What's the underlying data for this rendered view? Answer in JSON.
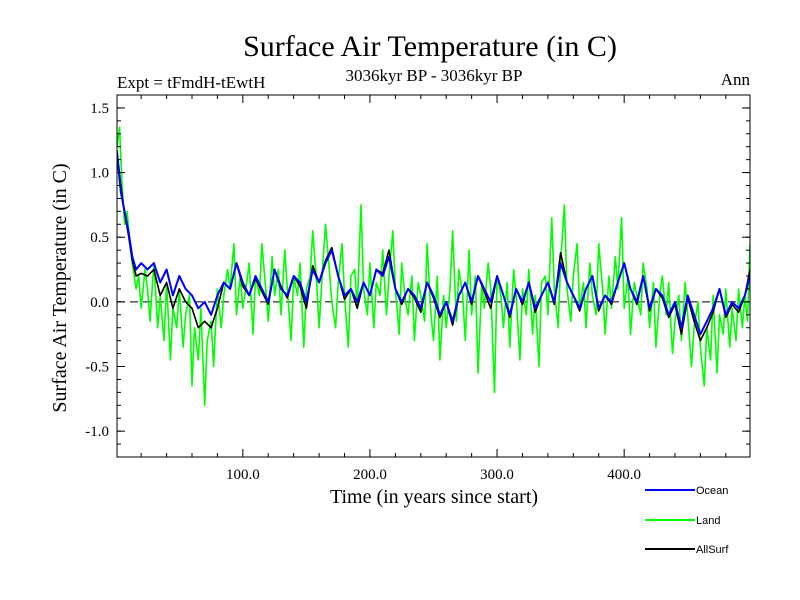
{
  "chart_data": {
    "type": "line",
    "title": "Surface Air Temperature (in C)",
    "subtitle_left": "Expt = tFmdH-tEwtH",
    "subtitle_center": "3036kyr BP - 3036kyr BP",
    "subtitle_right": "Ann",
    "xlabel": "Time (in years since start)",
    "ylabel": "Surface Air Temperature (in C)",
    "xlim": [
      1,
      499
    ],
    "ylim": [
      -1.2,
      1.6
    ],
    "xticks": [
      {
        "value": 100,
        "label": "100.0"
      },
      {
        "value": 200,
        "label": "200.0"
      },
      {
        "value": 300,
        "label": "300.0"
      },
      {
        "value": 400,
        "label": "400.0"
      }
    ],
    "yticks": [
      {
        "value": 1.5,
        "label": "1.5"
      },
      {
        "value": 1.0,
        "label": "1.0"
      },
      {
        "value": 0.5,
        "label": "0.5"
      },
      {
        "value": 0.0,
        "label": "0.0"
      },
      {
        "value": -0.5,
        "label": "-0.5"
      },
      {
        "value": -1.0,
        "label": "-1.0"
      }
    ],
    "reference_line": 0,
    "series": [
      {
        "name": "Ocean",
        "color": "#0000ff",
        "x": [
          1,
          4,
          7,
          10,
          13,
          16,
          20,
          25,
          30,
          35,
          40,
          45,
          50,
          55,
          60,
          65,
          70,
          75,
          80,
          85,
          90,
          95,
          100,
          105,
          110,
          115,
          120,
          125,
          130,
          135,
          140,
          145,
          150,
          155,
          160,
          165,
          170,
          175,
          180,
          185,
          190,
          195,
          200,
          205,
          210,
          215,
          220,
          225,
          230,
          235,
          240,
          245,
          250,
          255,
          260,
          265,
          270,
          275,
          280,
          285,
          290,
          295,
          300,
          305,
          310,
          315,
          320,
          325,
          330,
          335,
          340,
          345,
          350,
          355,
          360,
          365,
          370,
          375,
          380,
          385,
          390,
          395,
          400,
          405,
          410,
          415,
          420,
          425,
          430,
          435,
          440,
          445,
          450,
          455,
          460,
          465,
          470,
          475,
          480,
          485,
          490,
          495,
          499
        ],
        "values": [
          1.15,
          0.85,
          0.7,
          0.55,
          0.35,
          0.25,
          0.3,
          0.25,
          0.3,
          0.15,
          0.25,
          0.05,
          0.2,
          0.1,
          0.05,
          -0.05,
          0.0,
          -0.1,
          0.05,
          0.15,
          0.1,
          0.3,
          0.15,
          0.05,
          0.2,
          0.1,
          0.0,
          0.25,
          0.1,
          0.05,
          0.2,
          0.15,
          0.0,
          0.25,
          0.15,
          0.3,
          0.4,
          0.2,
          0.05,
          0.1,
          0.0,
          0.15,
          0.05,
          0.25,
          0.2,
          0.35,
          0.1,
          0.0,
          0.1,
          0.05,
          -0.05,
          0.15,
          0.05,
          -0.1,
          0.0,
          -0.15,
          0.05,
          0.15,
          0.0,
          0.2,
          0.1,
          0.0,
          0.2,
          0.05,
          -0.1,
          0.1,
          0.0,
          0.15,
          -0.05,
          0.05,
          0.15,
          0.0,
          0.3,
          0.15,
          0.05,
          -0.05,
          0.1,
          0.2,
          -0.05,
          0.05,
          0.0,
          0.15,
          0.3,
          0.1,
          0.0,
          0.2,
          -0.05,
          0.1,
          0.05,
          -0.1,
          0.0,
          -0.2,
          0.05,
          -0.1,
          -0.25,
          -0.15,
          -0.05,
          0.1,
          -0.1,
          0.0,
          -0.05,
          0.05,
          0.2
        ]
      },
      {
        "name": "Land",
        "color": "#00ff00",
        "x": [
          1,
          3,
          5,
          7,
          9,
          11,
          13,
          16,
          18,
          20,
          23,
          25,
          27,
          30,
          33,
          35,
          38,
          40,
          43,
          45,
          48,
          50,
          53,
          55,
          58,
          60,
          62,
          65,
          67,
          70,
          72,
          75,
          77,
          80,
          83,
          85,
          88,
          90,
          93,
          95,
          98,
          100,
          103,
          105,
          108,
          110,
          113,
          115,
          118,
          120,
          123,
          125,
          128,
          130,
          133,
          135,
          138,
          140,
          143,
          145,
          148,
          150,
          153,
          155,
          158,
          160,
          163,
          165,
          168,
          170,
          173,
          175,
          178,
          180,
          183,
          185,
          188,
          190,
          193,
          195,
          198,
          200,
          203,
          205,
          208,
          210,
          213,
          215,
          218,
          220,
          223,
          225,
          228,
          230,
          233,
          235,
          238,
          240,
          243,
          245,
          248,
          250,
          253,
          255,
          258,
          260,
          263,
          265,
          268,
          270,
          273,
          275,
          278,
          280,
          283,
          285,
          288,
          290,
          293,
          295,
          298,
          300,
          303,
          305,
          308,
          310,
          313,
          315,
          318,
          320,
          323,
          325,
          328,
          330,
          333,
          335,
          338,
          340,
          343,
          345,
          348,
          350,
          353,
          355,
          358,
          360,
          363,
          365,
          368,
          370,
          373,
          375,
          378,
          380,
          383,
          385,
          388,
          390,
          393,
          395,
          398,
          400,
          403,
          405,
          408,
          410,
          413,
          415,
          418,
          420,
          423,
          425,
          428,
          430,
          433,
          435,
          438,
          440,
          443,
          445,
          448,
          450,
          453,
          455,
          458,
          460,
          463,
          465,
          468,
          470,
          473,
          475,
          478,
          480,
          483,
          485,
          488,
          490,
          493,
          495,
          497,
          499
        ],
        "values": [
          1.2,
          1.35,
          0.9,
          0.6,
          0.7,
          0.45,
          0.3,
          0.1,
          0.2,
          -0.05,
          0.25,
          0.1,
          -0.15,
          0.3,
          -0.2,
          0.05,
          -0.3,
          0.15,
          -0.45,
          -0.05,
          -0.2,
          0.1,
          -0.35,
          -0.1,
          0.05,
          -0.65,
          -0.2,
          -0.45,
          -0.05,
          -0.8,
          -0.3,
          -0.15,
          -0.5,
          0.1,
          -0.2,
          0.05,
          0.25,
          0.1,
          0.45,
          -0.1,
          0.2,
          -0.05,
          0.15,
          0.3,
          -0.25,
          0.2,
          0.05,
          0.45,
          0.1,
          -0.15,
          0.35,
          0.05,
          0.25,
          -0.1,
          0.4,
          0.1,
          -0.3,
          0.2,
          0.05,
          0.3,
          -0.35,
          0.1,
          0.2,
          0.55,
          0.15,
          -0.2,
          0.3,
          0.6,
          0.25,
          0.0,
          -0.2,
          0.15,
          0.45,
          0.05,
          -0.35,
          0.2,
          0.25,
          -0.05,
          0.75,
          0.1,
          -0.1,
          0.3,
          -0.2,
          0.15,
          0.05,
          0.4,
          -0.1,
          0.2,
          0.55,
          0.1,
          -0.25,
          0.3,
          0.0,
          -0.1,
          0.2,
          -0.3,
          0.15,
          0.05,
          -0.15,
          0.45,
          -0.1,
          -0.3,
          0.2,
          -0.45,
          0.05,
          -0.2,
          0.1,
          0.55,
          -0.15,
          0.25,
          0.05,
          -0.3,
          0.4,
          -0.1,
          0.2,
          -0.55,
          0.15,
          -0.05,
          0.3,
          0.1,
          -0.7,
          0.2,
          0.05,
          -0.2,
          0.15,
          -0.35,
          0.25,
          0.05,
          -0.45,
          0.1,
          -0.1,
          0.25,
          -0.25,
          0.05,
          -0.5,
          0.15,
          0.2,
          -0.1,
          0.65,
          0.1,
          -0.2,
          0.3,
          0.75,
          0.1,
          -0.15,
          0.2,
          0.45,
          -0.05,
          0.15,
          -0.2,
          0.3,
          0.05,
          -0.1,
          0.45,
          0.1,
          -0.25,
          0.2,
          -0.05,
          0.35,
          0.1,
          0.65,
          -0.05,
          0.2,
          -0.25,
          0.15,
          0.05,
          -0.1,
          0.3,
          0.1,
          -0.2,
          0.15,
          -0.35,
          0.05,
          0.2,
          -0.1,
          0.15,
          -0.4,
          -0.15,
          0.05,
          -0.3,
          0.15,
          -0.1,
          -0.5,
          -0.2,
          0.0,
          -0.35,
          -0.65,
          -0.2,
          -0.45,
          0.05,
          -0.55,
          -0.1,
          -0.25,
          0.1,
          -0.35,
          -0.05,
          -0.3,
          0.1,
          -0.2,
          0.05,
          -0.15,
          0.45
        ]
      },
      {
        "name": "AllSurf",
        "color": "#000000",
        "x": [
          1,
          4,
          7,
          10,
          13,
          16,
          20,
          25,
          30,
          35,
          40,
          45,
          50,
          55,
          60,
          65,
          70,
          75,
          80,
          85,
          90,
          95,
          100,
          105,
          110,
          115,
          120,
          125,
          130,
          135,
          140,
          145,
          150,
          155,
          160,
          165,
          170,
          175,
          180,
          185,
          190,
          195,
          200,
          205,
          210,
          215,
          220,
          225,
          230,
          235,
          240,
          245,
          250,
          255,
          260,
          265,
          270,
          275,
          280,
          285,
          290,
          295,
          300,
          305,
          310,
          315,
          320,
          325,
          330,
          335,
          340,
          345,
          350,
          355,
          360,
          365,
          370,
          375,
          380,
          385,
          390,
          395,
          400,
          405,
          410,
          415,
          420,
          425,
          430,
          435,
          440,
          445,
          450,
          455,
          460,
          465,
          470,
          475,
          480,
          485,
          490,
          495,
          499
        ],
        "values": [
          1.17,
          0.9,
          0.68,
          0.52,
          0.32,
          0.2,
          0.22,
          0.2,
          0.25,
          0.05,
          0.15,
          -0.05,
          0.1,
          0.0,
          -0.05,
          -0.2,
          -0.15,
          -0.2,
          -0.05,
          0.15,
          0.1,
          0.3,
          0.12,
          0.05,
          0.18,
          0.08,
          -0.02,
          0.25,
          0.12,
          0.03,
          0.2,
          0.12,
          -0.05,
          0.28,
          0.15,
          0.32,
          0.42,
          0.2,
          0.02,
          0.1,
          -0.05,
          0.15,
          0.05,
          0.25,
          0.22,
          0.4,
          0.1,
          -0.02,
          0.1,
          0.03,
          -0.08,
          0.15,
          0.03,
          -0.12,
          0.0,
          -0.18,
          0.05,
          0.15,
          -0.02,
          0.2,
          0.08,
          -0.05,
          0.2,
          0.05,
          -0.12,
          0.1,
          -0.02,
          0.15,
          -0.08,
          0.05,
          0.15,
          -0.02,
          0.38,
          0.15,
          0.05,
          -0.07,
          0.1,
          0.2,
          -0.07,
          0.05,
          -0.02,
          0.15,
          0.3,
          0.1,
          -0.02,
          0.2,
          -0.07,
          0.1,
          0.03,
          -0.12,
          -0.02,
          -0.25,
          0.03,
          -0.15,
          -0.3,
          -0.2,
          -0.08,
          0.1,
          -0.12,
          -0.02,
          -0.08,
          0.05,
          0.25
        ]
      }
    ]
  }
}
